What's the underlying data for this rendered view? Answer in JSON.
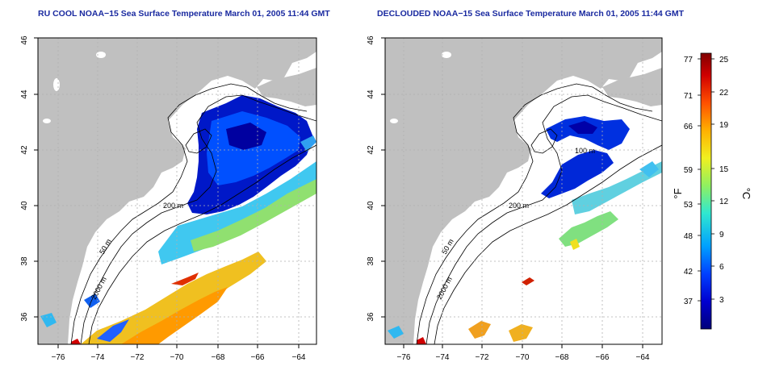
{
  "titles": {
    "left": "RU COOL NOAA−15 Sea Surface Temperature March 01, 2005 11:44 GMT",
    "right": "DECLOUDED NOAA−15 Sea Surface Temperature March 01, 2005 11:44 GMT"
  },
  "axes": {
    "x_ticks": [
      "−76",
      "−74",
      "−72",
      "−70",
      "−68",
      "−66",
      "−64"
    ],
    "y_ticks": [
      "36",
      "38",
      "40",
      "42",
      "44",
      "46"
    ],
    "x_range": [
      -77.3,
      -63.0
    ],
    "y_range": [
      35.0,
      46.0
    ]
  },
  "contours": {
    "shelf": "50 m",
    "slope": "200 m",
    "deep": "2000 m",
    "gulf": "100 m"
  },
  "colorbar": {
    "fahrenheit_label": "°F",
    "celsius_label": "°C",
    "fahrenheit_ticks": [
      "77",
      "71",
      "66",
      "59",
      "53",
      "48",
      "42",
      "37"
    ],
    "celsius_ticks": [
      "25",
      "22",
      "19",
      "15",
      "12",
      "9",
      "6",
      "3"
    ],
    "colors": [
      "#00007a",
      "#0000d0",
      "#0040ff",
      "#00a0ff",
      "#30e8d0",
      "#90f060",
      "#f0f020",
      "#ffb000",
      "#ff5000",
      "#d00000",
      "#800000"
    ]
  },
  "colors": {
    "land": "#c0c0c0",
    "ocean": "#ffffff",
    "title": "#1a2aa0",
    "grid": "#b0b0b0"
  }
}
